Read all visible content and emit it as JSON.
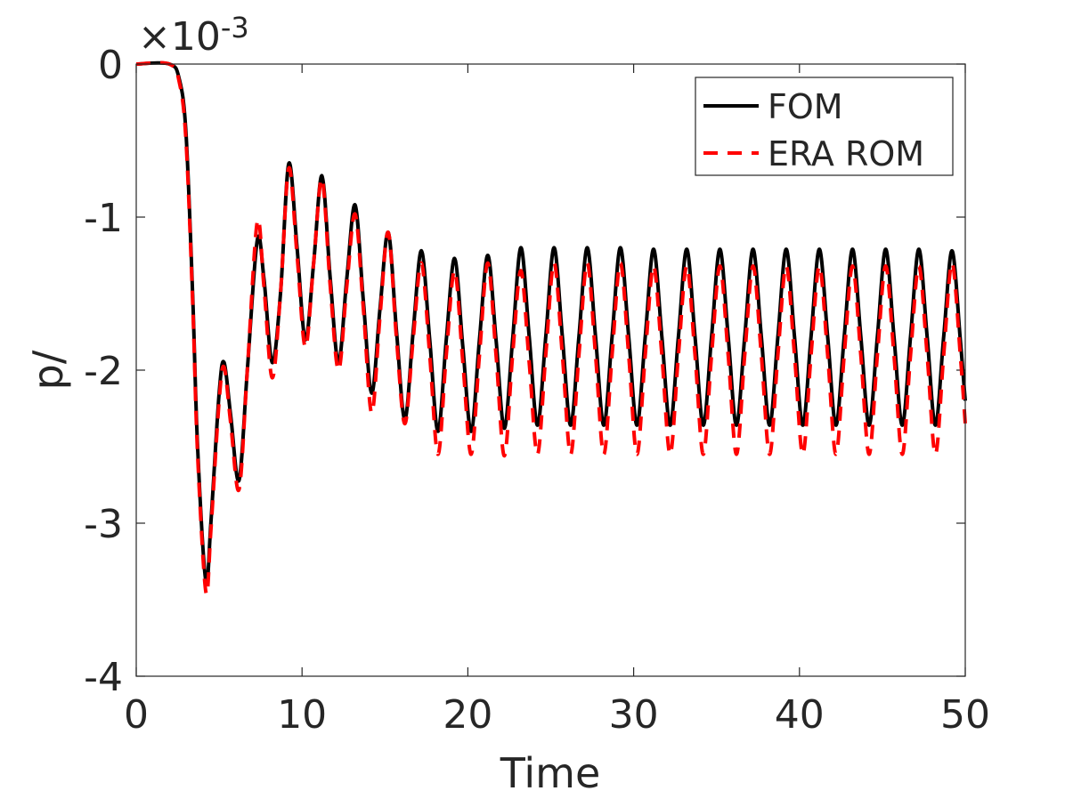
{
  "chart_data": {
    "type": "line",
    "title": "",
    "xlabel": "Time",
    "ylabel": "p/",
    "scale_exponent_label": "×10-3",
    "scale_exponent": -3,
    "xlim": [
      0,
      50
    ],
    "ylim": [
      -4,
      0
    ],
    "xticks": [
      0,
      10,
      20,
      30,
      40,
      50
    ],
    "xtick_labels": [
      "0",
      "10",
      "20",
      "30",
      "40",
      "50"
    ],
    "yticks": [
      0,
      -1,
      -2,
      -3,
      -4
    ],
    "ytick_labels": [
      "0",
      "-1",
      "-2",
      "-3",
      "-4"
    ],
    "grid": false,
    "legend_position": "top-right",
    "series": [
      {
        "name": "FOM",
        "color": "#000000",
        "style": "solid",
        "x": [
          0,
          2.0,
          2.6,
          3.0,
          3.4,
          3.7,
          4.2,
          4.5,
          5.0,
          5.3,
          5.7,
          6.2,
          6.7,
          7.3,
          7.7,
          8.2,
          8.7,
          9.2,
          9.7,
          10.2,
          10.7,
          11.2,
          11.7,
          12.2,
          12.7,
          13.2,
          13.7,
          14.2,
          14.7,
          15.2,
          15.7,
          16.2,
          16.7,
          17.2,
          17.7,
          18.2,
          18.7,
          19.2,
          19.7,
          20.2,
          20.7,
          21.2,
          21.7,
          22.2,
          22.7,
          23.2,
          23.7,
          24.2,
          24.7,
          25.2,
          25.7,
          26.2,
          26.7,
          27.2,
          27.7,
          28.2,
          28.7,
          29.2,
          29.7,
          30.2,
          30.7,
          31.2,
          31.7,
          32.2,
          32.7,
          33.2,
          33.7,
          34.2,
          34.7,
          35.2,
          35.7,
          36.2,
          36.7,
          37.2,
          37.7,
          38.2,
          38.7,
          39.2,
          39.7,
          40.2,
          40.7,
          41.2,
          41.7,
          42.2,
          42.7,
          43.2,
          43.7,
          44.2,
          44.7,
          45.2,
          45.7,
          46.2,
          46.7,
          47.2,
          47.7,
          48.2,
          48.7,
          49.2,
          49.7,
          50.0
        ],
        "y": [
          0,
          0,
          -0.1,
          -0.45,
          -1.5,
          -2.5,
          -3.38,
          -3.0,
          -2.15,
          -1.95,
          -2.3,
          -2.72,
          -2.0,
          -1.15,
          -1.4,
          -1.95,
          -1.5,
          -0.65,
          -1.2,
          -1.8,
          -1.3,
          -0.73,
          -1.4,
          -1.95,
          -1.4,
          -0.92,
          -1.55,
          -2.15,
          -1.6,
          -1.1,
          -1.75,
          -2.32,
          -1.75,
          -1.22,
          -1.8,
          -2.4,
          -1.8,
          -1.27,
          -1.85,
          -2.4,
          -1.8,
          -1.25,
          -1.8,
          -2.38,
          -1.8,
          -1.2,
          -1.78,
          -2.36,
          -1.78,
          -1.2,
          -1.78,
          -2.36,
          -1.78,
          -1.2,
          -1.78,
          -2.36,
          -1.78,
          -1.2,
          -1.78,
          -2.36,
          -1.78,
          -1.21,
          -1.78,
          -2.36,
          -1.78,
          -1.21,
          -1.78,
          -2.36,
          -1.78,
          -1.21,
          -1.78,
          -2.36,
          -1.78,
          -1.21,
          -1.78,
          -2.36,
          -1.78,
          -1.21,
          -1.78,
          -2.36,
          -1.78,
          -1.21,
          -1.78,
          -2.36,
          -1.78,
          -1.21,
          -1.78,
          -2.36,
          -1.78,
          -1.21,
          -1.78,
          -2.36,
          -1.78,
          -1.21,
          -1.78,
          -2.36,
          -1.78,
          -1.22,
          -1.8,
          -2.2
        ]
      },
      {
        "name": "ERA ROM",
        "color": "#ff0000",
        "style": "dashed",
        "x": [
          0,
          2.0,
          2.6,
          3.0,
          3.4,
          3.7,
          4.2,
          4.5,
          5.0,
          5.3,
          5.7,
          6.2,
          6.7,
          7.3,
          7.7,
          8.2,
          8.7,
          9.2,
          9.7,
          10.2,
          10.7,
          11.2,
          11.7,
          12.2,
          12.7,
          13.2,
          13.7,
          14.2,
          14.7,
          15.2,
          15.7,
          16.2,
          16.7,
          17.2,
          17.7,
          18.2,
          18.7,
          19.2,
          19.7,
          20.2,
          20.7,
          21.2,
          21.7,
          22.2,
          22.7,
          23.2,
          23.7,
          24.2,
          24.7,
          25.2,
          25.7,
          26.2,
          26.7,
          27.2,
          27.7,
          28.2,
          28.7,
          29.2,
          29.7,
          30.2,
          30.7,
          31.2,
          31.7,
          32.2,
          32.7,
          33.2,
          33.7,
          34.2,
          34.7,
          35.2,
          35.7,
          36.2,
          36.7,
          37.2,
          37.7,
          38.2,
          38.7,
          39.2,
          39.7,
          40.2,
          40.7,
          41.2,
          41.7,
          42.2,
          42.7,
          43.2,
          43.7,
          44.2,
          44.7,
          45.2,
          45.7,
          46.2,
          46.7,
          47.2,
          47.7,
          48.2,
          48.7,
          49.2,
          49.7,
          50.0
        ],
        "y": [
          0,
          0,
          -0.12,
          -0.5,
          -1.55,
          -2.55,
          -3.45,
          -3.05,
          -2.2,
          -1.98,
          -2.35,
          -2.78,
          -2.0,
          -1.03,
          -1.45,
          -2.05,
          -1.5,
          -0.68,
          -1.25,
          -1.85,
          -1.3,
          -0.75,
          -1.45,
          -2.0,
          -1.45,
          -0.98,
          -1.6,
          -2.28,
          -1.65,
          -1.1,
          -1.8,
          -2.35,
          -1.8,
          -1.3,
          -1.9,
          -2.55,
          -1.9,
          -1.35,
          -1.95,
          -2.55,
          -1.9,
          -1.3,
          -1.9,
          -2.56,
          -1.9,
          -1.35,
          -1.95,
          -2.55,
          -1.9,
          -1.3,
          -1.9,
          -2.55,
          -1.9,
          -1.3,
          -1.9,
          -2.55,
          -1.9,
          -1.3,
          -1.9,
          -2.55,
          -1.9,
          -1.32,
          -1.9,
          -2.55,
          -1.9,
          -1.32,
          -1.9,
          -2.55,
          -1.9,
          -1.32,
          -1.9,
          -2.55,
          -1.9,
          -1.32,
          -1.9,
          -2.55,
          -1.9,
          -1.32,
          -1.9,
          -2.55,
          -1.9,
          -1.32,
          -1.9,
          -2.55,
          -1.9,
          -1.32,
          -1.9,
          -2.55,
          -1.9,
          -1.32,
          -1.9,
          -2.55,
          -1.9,
          -1.32,
          -1.9,
          -2.55,
          -1.9,
          -1.3,
          -1.9,
          -2.35
        ]
      }
    ]
  }
}
